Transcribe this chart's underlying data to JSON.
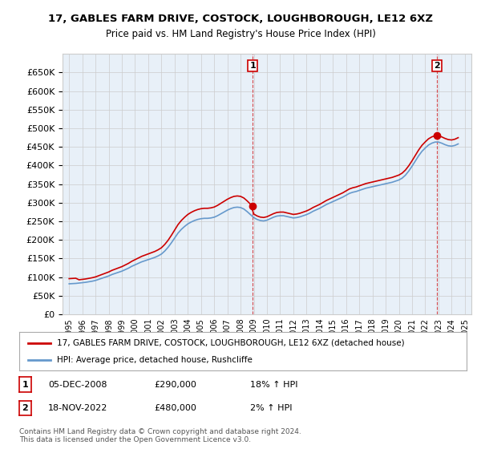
{
  "title": "17, GABLES FARM DRIVE, COSTOCK, LOUGHBOROUGH, LE12 6XZ",
  "subtitle": "Price paid vs. HM Land Registry's House Price Index (HPI)",
  "hpi_label": "HPI: Average price, detached house, Rushcliffe",
  "property_label": "17, GABLES FARM DRIVE, COSTOCK, LOUGHBOROUGH, LE12 6XZ (detached house)",
  "annotation1": {
    "num": "1",
    "date": "05-DEC-2008",
    "price": "£290,000",
    "hpi": "18% ↑ HPI",
    "x_year": 2008.92
  },
  "annotation2": {
    "num": "2",
    "date": "18-NOV-2022",
    "price": "£480,000",
    "hpi": "2% ↑ HPI",
    "x_year": 2022.88
  },
  "copyright_text": "Contains HM Land Registry data © Crown copyright and database right 2024.\nThis data is licensed under the Open Government Licence v3.0.",
  "line_color_property": "#cc0000",
  "line_color_hpi": "#6699cc",
  "annotation_line_color": "#cc0000",
  "grid_color": "#cccccc",
  "background_color": "#ffffff",
  "plot_bg_color": "#e8f0f8",
  "ylim": [
    0,
    700000
  ],
  "yticks": [
    0,
    50000,
    100000,
    150000,
    200000,
    250000,
    300000,
    350000,
    400000,
    450000,
    500000,
    550000,
    600000,
    650000
  ],
  "xlim_start": 1994.5,
  "xlim_end": 2025.5,
  "xticks": [
    1995,
    1996,
    1997,
    1998,
    1999,
    2000,
    2001,
    2002,
    2003,
    2004,
    2005,
    2006,
    2007,
    2008,
    2009,
    2010,
    2011,
    2012,
    2013,
    2014,
    2015,
    2016,
    2017,
    2018,
    2019,
    2020,
    2021,
    2022,
    2023,
    2024,
    2025
  ],
  "hpi_data": {
    "years": [
      1995.0,
      1995.25,
      1995.5,
      1995.75,
      1996.0,
      1996.25,
      1996.5,
      1996.75,
      1997.0,
      1997.25,
      1997.5,
      1997.75,
      1998.0,
      1998.25,
      1998.5,
      1998.75,
      1999.0,
      1999.25,
      1999.5,
      1999.75,
      2000.0,
      2000.25,
      2000.5,
      2000.75,
      2001.0,
      2001.25,
      2001.5,
      2001.75,
      2002.0,
      2002.25,
      2002.5,
      2002.75,
      2003.0,
      2003.25,
      2003.5,
      2003.75,
      2004.0,
      2004.25,
      2004.5,
      2004.75,
      2005.0,
      2005.25,
      2005.5,
      2005.75,
      2006.0,
      2006.25,
      2006.5,
      2006.75,
      2007.0,
      2007.25,
      2007.5,
      2007.75,
      2008.0,
      2008.25,
      2008.5,
      2008.75,
      2009.0,
      2009.25,
      2009.5,
      2009.75,
      2010.0,
      2010.25,
      2010.5,
      2010.75,
      2011.0,
      2011.25,
      2011.5,
      2011.75,
      2012.0,
      2012.25,
      2012.5,
      2012.75,
      2013.0,
      2013.25,
      2013.5,
      2013.75,
      2014.0,
      2014.25,
      2014.5,
      2014.75,
      2015.0,
      2015.25,
      2015.5,
      2015.75,
      2016.0,
      2016.25,
      2016.5,
      2016.75,
      2017.0,
      2017.25,
      2017.5,
      2017.75,
      2018.0,
      2018.25,
      2018.5,
      2018.75,
      2019.0,
      2019.25,
      2019.5,
      2019.75,
      2020.0,
      2020.25,
      2020.5,
      2020.75,
      2021.0,
      2021.25,
      2021.5,
      2021.75,
      2022.0,
      2022.25,
      2022.5,
      2022.75,
      2023.0,
      2023.25,
      2023.5,
      2023.75,
      2024.0,
      2024.25,
      2024.5
    ],
    "values": [
      82000,
      82500,
      83000,
      84000,
      85000,
      86000,
      87500,
      89000,
      91000,
      94000,
      97000,
      100000,
      103000,
      107000,
      110000,
      113000,
      116000,
      120000,
      124000,
      129000,
      133000,
      137000,
      141000,
      144000,
      147000,
      150000,
      153000,
      157000,
      162000,
      170000,
      180000,
      192000,
      205000,
      218000,
      228000,
      236000,
      243000,
      248000,
      252000,
      255000,
      257000,
      258000,
      258000,
      259000,
      261000,
      265000,
      270000,
      275000,
      280000,
      284000,
      287000,
      288000,
      287000,
      283000,
      276000,
      268000,
      260000,
      255000,
      252000,
      251000,
      253000,
      257000,
      261000,
      264000,
      265000,
      265000,
      263000,
      261000,
      259000,
      260000,
      262000,
      265000,
      268000,
      272000,
      277000,
      281000,
      285000,
      290000,
      295000,
      299000,
      303000,
      307000,
      311000,
      315000,
      320000,
      325000,
      328000,
      330000,
      333000,
      336000,
      339000,
      341000,
      343000,
      345000,
      347000,
      349000,
      351000,
      353000,
      355000,
      358000,
      361000,
      366000,
      374000,
      385000,
      398000,
      412000,
      426000,
      438000,
      447000,
      455000,
      460000,
      463000,
      463000,
      460000,
      456000,
      453000,
      452000,
      454000,
      458000
    ]
  },
  "property_data": {
    "years": [
      1995.5,
      2008.92,
      2022.88
    ],
    "values": [
      97000,
      290000,
      480000
    ]
  }
}
